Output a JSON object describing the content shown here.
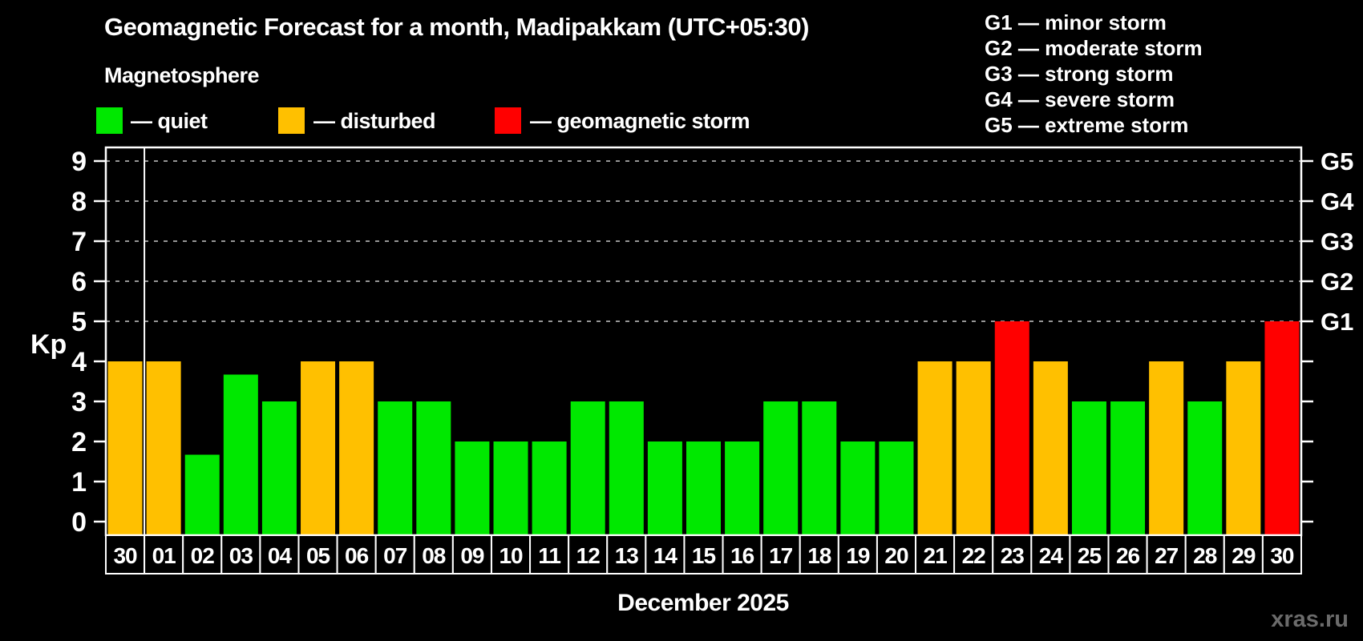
{
  "header": {
    "title": "Geomagnetic Forecast for a month, Madipakkam (UTC+05:30)",
    "subtitle": "Magnetosphere"
  },
  "legend": {
    "items": [
      {
        "status": "quiet",
        "label": "— quiet",
        "color": "#00e800"
      },
      {
        "status": "disturbed",
        "label": "— disturbed",
        "color": "#ffc000"
      },
      {
        "status": "storm",
        "label": "— geomagnetic storm",
        "color": "#ff0000"
      }
    ]
  },
  "storm_scale_legend": {
    "items": [
      "G1 — minor storm",
      "G2 — moderate storm",
      "G3 — strong storm",
      "G4 — severe storm",
      "G5 — extreme storm"
    ]
  },
  "chart_data": {
    "type": "bar",
    "title": "Geomagnetic Forecast for a month, Madipakkam (UTC+05:30)",
    "ylabel": "Kp",
    "xlabel": "December 2025",
    "categories": [
      "30",
      "01",
      "02",
      "03",
      "04",
      "05",
      "06",
      "07",
      "08",
      "09",
      "10",
      "11",
      "12",
      "13",
      "14",
      "15",
      "16",
      "17",
      "18",
      "19",
      "20",
      "21",
      "22",
      "23",
      "24",
      "25",
      "26",
      "27",
      "28",
      "29",
      "30"
    ],
    "values": [
      4,
      4,
      1.67,
      3.67,
      3,
      4,
      4,
      3,
      3,
      2,
      2,
      2,
      3,
      3,
      2,
      2,
      2,
      3,
      3,
      2,
      2,
      4,
      4,
      5,
      4,
      3,
      3,
      4,
      3,
      4,
      5
    ],
    "statuses": [
      "disturbed",
      "disturbed",
      "quiet",
      "quiet",
      "quiet",
      "disturbed",
      "disturbed",
      "quiet",
      "quiet",
      "quiet",
      "quiet",
      "quiet",
      "quiet",
      "quiet",
      "quiet",
      "quiet",
      "quiet",
      "quiet",
      "quiet",
      "quiet",
      "quiet",
      "disturbed",
      "disturbed",
      "storm",
      "disturbed",
      "quiet",
      "quiet",
      "disturbed",
      "quiet",
      "disturbed",
      "storm"
    ],
    "palette": {
      "quiet": "#00e800",
      "disturbed": "#ffc000",
      "storm": "#ff0000"
    },
    "yticks": [
      0,
      1,
      2,
      3,
      4,
      5,
      6,
      7,
      8,
      9
    ],
    "ylim": [
      -0.34,
      9.34
    ],
    "gridlines_at": [
      5,
      6,
      7,
      8,
      9
    ],
    "grid_style": "dashed gray horizontal lines at Kp 5-9 only",
    "right_axis_labels": [
      {
        "label": "G1",
        "kp": 5
      },
      {
        "label": "G2",
        "kp": 6
      },
      {
        "label": "G3",
        "kp": 7
      },
      {
        "label": "G4",
        "kp": 8
      },
      {
        "label": "G5",
        "kp": 9
      }
    ],
    "separator_after_index": 0,
    "legend_position": "top-left"
  },
  "footer": {
    "month_label": "December 2025",
    "watermark": "xras.ru"
  }
}
